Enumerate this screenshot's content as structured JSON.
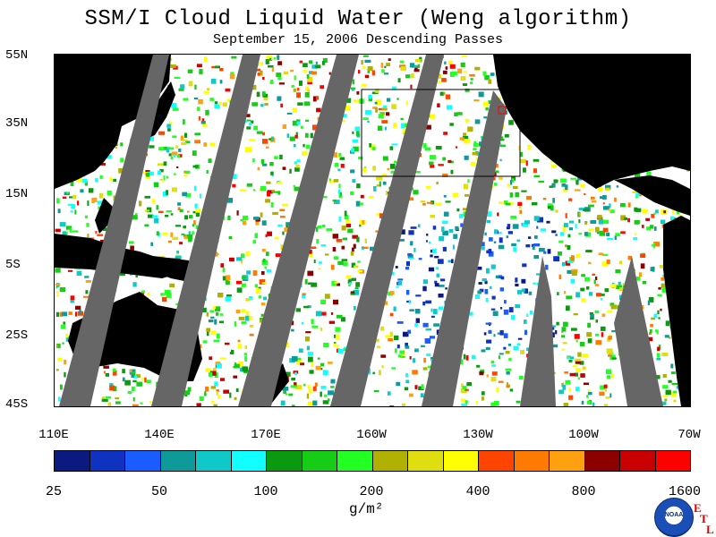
{
  "header": {
    "title": "SSM/I Cloud Liquid Water (Weng algorithm)",
    "subtitle": "September 15, 2006  Descending Passes"
  },
  "axes": {
    "lat_labels": [
      "55N",
      "35N",
      "15N",
      "5S",
      "25S",
      "45S"
    ],
    "lon_labels": [
      "110E",
      "140E",
      "170E",
      "160W",
      "130W",
      "100W",
      "70W"
    ]
  },
  "colorbar": {
    "colors": [
      "#0a1a80",
      "#0f33c0",
      "#1a5cff",
      "#0f9a9a",
      "#11c8c8",
      "#11ffff",
      "#0a9a10",
      "#16cc16",
      "#22ff22",
      "#b0b000",
      "#dede10",
      "#ffff00",
      "#ff4400",
      "#ff7a00",
      "#ffa010",
      "#8c0000",
      "#c80000",
      "#ff0000"
    ],
    "tick_labels": [
      "25",
      "50",
      "100",
      "200",
      "400",
      "800",
      "1600"
    ],
    "units": "g/m²"
  },
  "logo": {
    "agency": "NOAA",
    "lab_letters": [
      "E",
      "T",
      "L"
    ]
  },
  "map_colors": {
    "land": "#000000",
    "no_data_swath": "#666666",
    "background": "#ffffff"
  }
}
